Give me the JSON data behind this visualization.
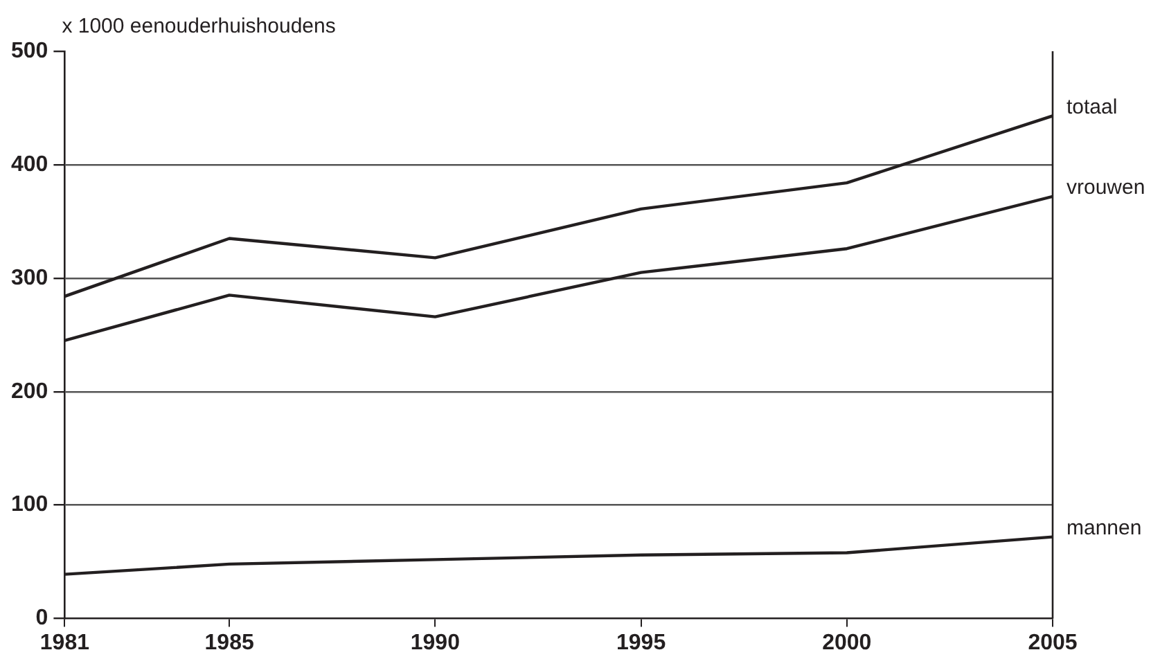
{
  "chart_data": {
    "type": "line",
    "ylabel": "x 1000 eenouderhuishoudens",
    "x": [
      1981,
      1985,
      1990,
      1995,
      2000,
      2005
    ],
    "xlim": [
      1981,
      2005
    ],
    "xticks": [
      1981,
      1985,
      1990,
      1995,
      2000,
      2005
    ],
    "ylim": [
      0,
      500
    ],
    "yticks": [
      0,
      100,
      200,
      300,
      400,
      500
    ],
    "grid": "y",
    "legend": false,
    "marker": "none",
    "line_style": "solid",
    "series": [
      {
        "name": "totaal",
        "color": "#231f20",
        "values": [
          284,
          335,
          318,
          361,
          384,
          443
        ]
      },
      {
        "name": "vrouwen",
        "color": "#231f20",
        "values": [
          245,
          285,
          266,
          305,
          326,
          372
        ]
      },
      {
        "name": "mannen",
        "color": "#231f20",
        "values": [
          39,
          48,
          52,
          56,
          58,
          72
        ]
      }
    ]
  }
}
